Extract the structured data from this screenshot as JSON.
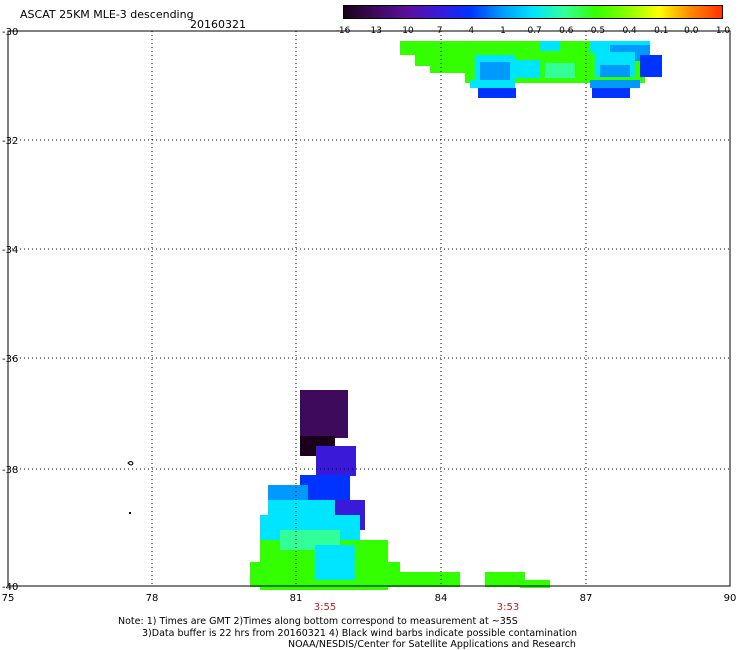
{
  "title": "ASCAT 25KM MLE-3 descending",
  "date": "20160321",
  "colorbar": {
    "labels": [
      "-16",
      "-13",
      "-10",
      "-7",
      "-4",
      "-1",
      "-0.7",
      "-0.6",
      "-0.5",
      "-0.4",
      "-0.1",
      "0.0",
      "1.0"
    ],
    "colors": [
      "#1a001a",
      "#3d0a5c",
      "#5b0f9a",
      "#3a1ad8",
      "#0033ff",
      "#0099ff",
      "#00e5ff",
      "#33ff99",
      "#33ff00",
      "#88ff00",
      "#ffff00",
      "#ff8800",
      "#ff3300"
    ]
  },
  "map": {
    "lon_ticks": [
      "75",
      "78",
      "81",
      "84",
      "87",
      "90"
    ],
    "lat_ticks": [
      "-30",
      "-32",
      "-34",
      "-36",
      "-38",
      "-40"
    ],
    "times": [
      "3:55",
      "3:53"
    ]
  },
  "notes": {
    "line1": "Note: 1) Times are GMT 2)Times along bottom correspond to measurement at ~35S",
    "line2": "3)Data buffer is 22 hrs from 20160321 4) Black wind barbs indicate possible contamination",
    "line3": "NOAA/NESDIS/Center for Satellite Applications and Research"
  }
}
